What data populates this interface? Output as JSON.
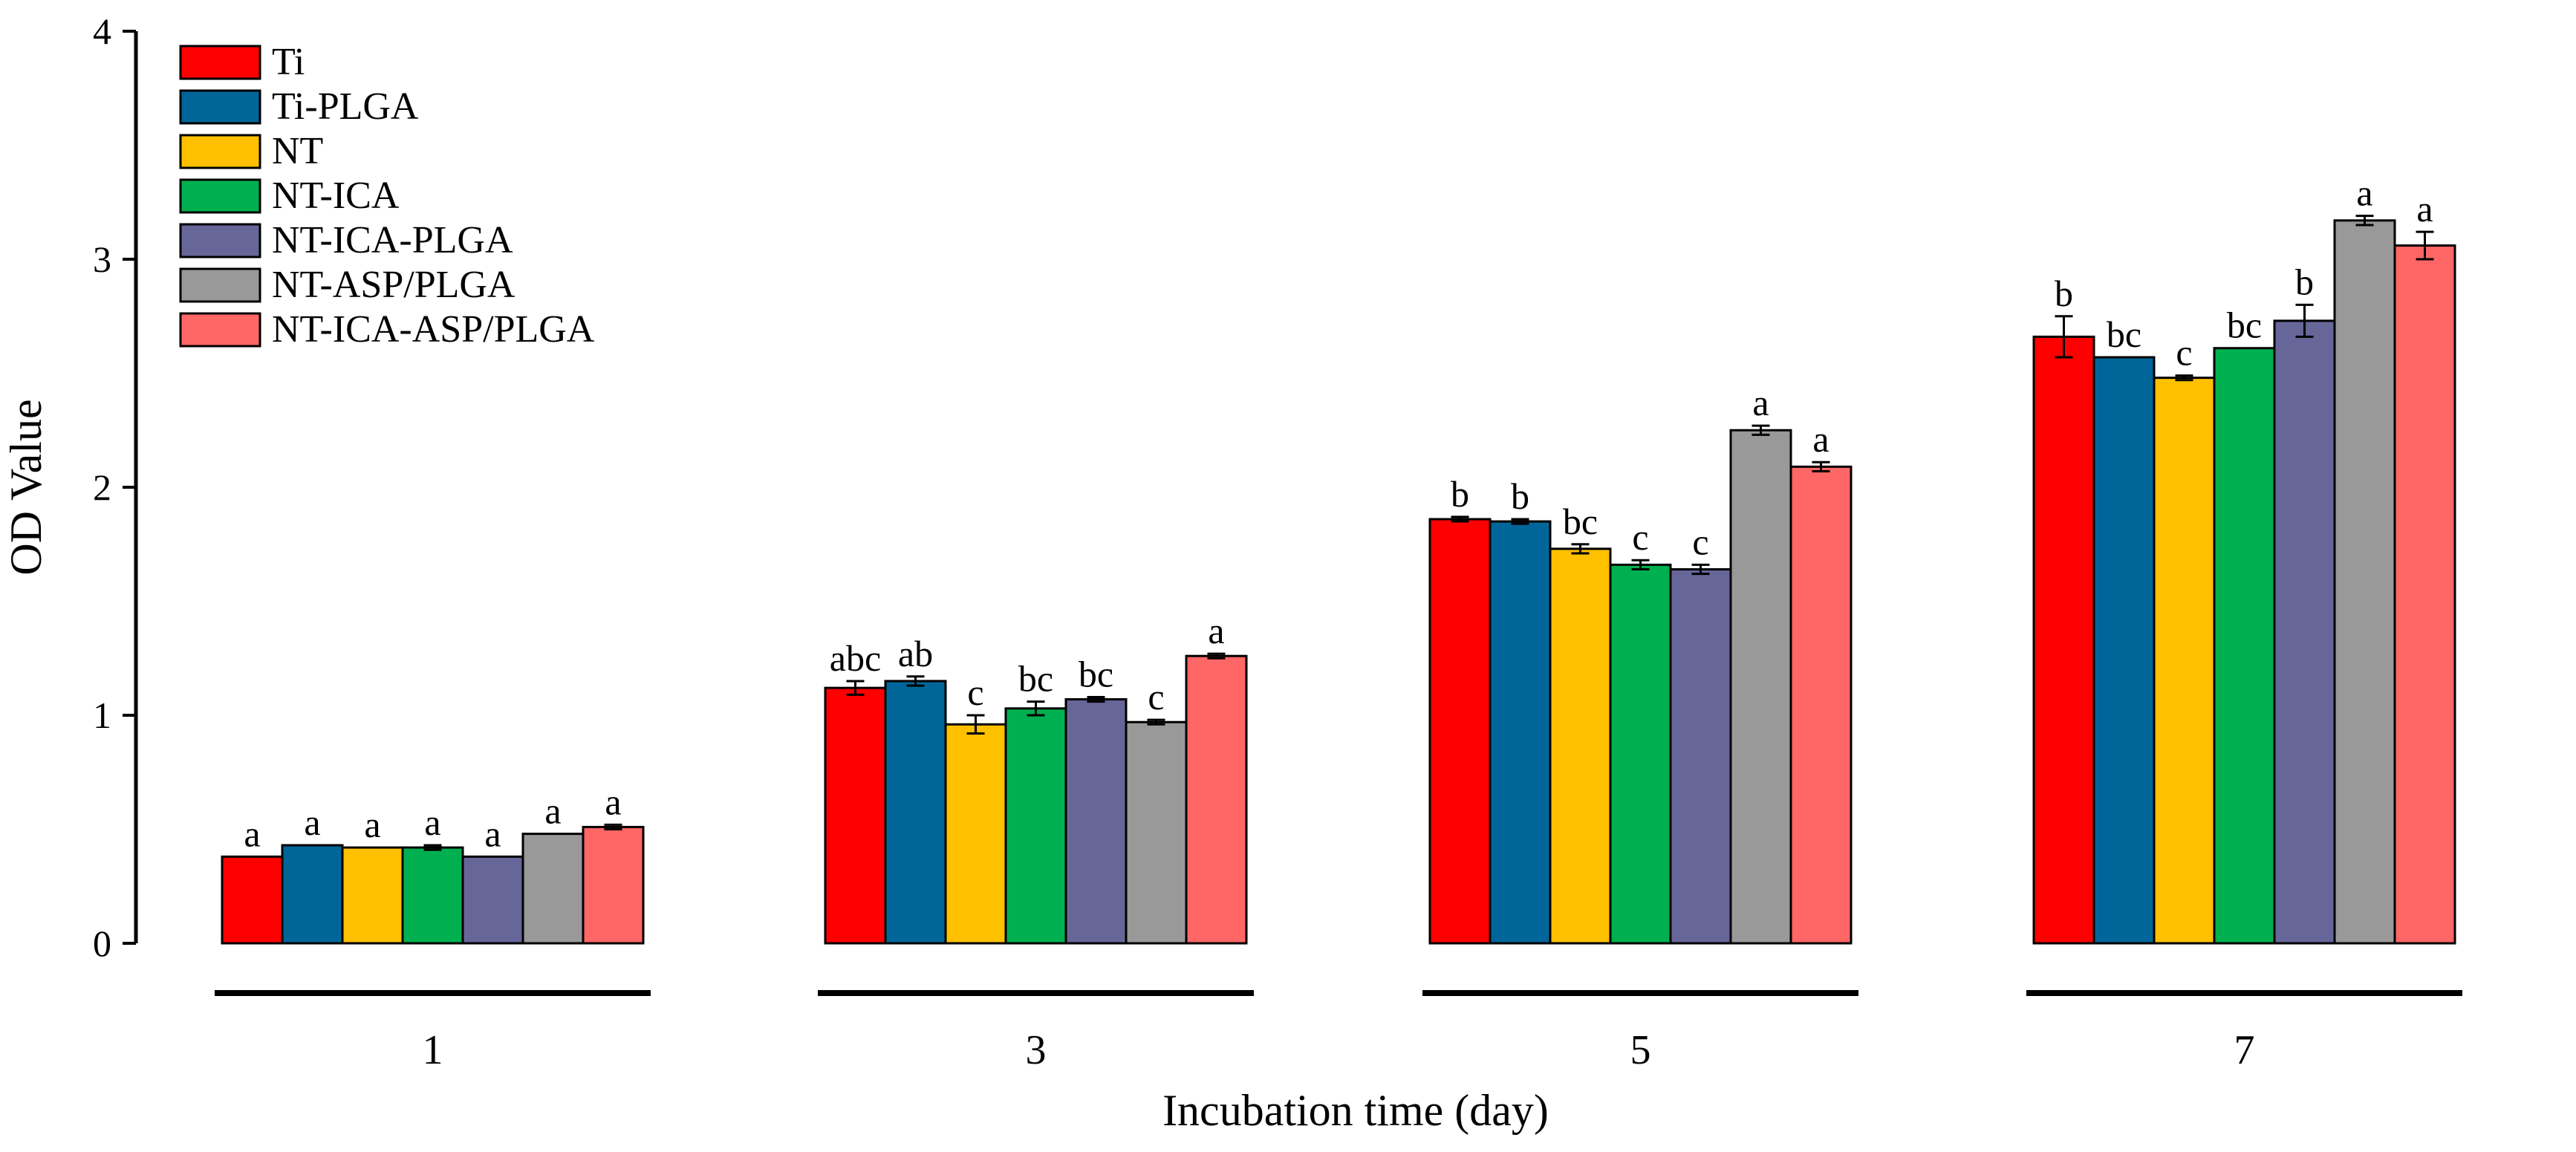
{
  "chart_data": {
    "type": "bar",
    "title": "",
    "xlabel": "Incubation time (day)",
    "ylabel": "OD Value",
    "ylim": [
      0,
      4
    ],
    "yticks": [
      "0",
      "1",
      "2",
      "3",
      "4"
    ],
    "categories": [
      "1",
      "3",
      "5",
      "7"
    ],
    "legend_position": "top-left",
    "series": [
      {
        "name": "Ti",
        "color": "#ff0000",
        "values": [
          0.38,
          1.12,
          1.86,
          2.66
        ],
        "errors": [
          0.0,
          0.03,
          0.01,
          0.09
        ],
        "labels": [
          "a",
          "abc",
          "b",
          "b"
        ]
      },
      {
        "name": "Ti-PLGA",
        "color": "#006699",
        "values": [
          0.43,
          1.15,
          1.85,
          2.57
        ],
        "errors": [
          0.0,
          0.02,
          0.01,
          0.0
        ],
        "labels": [
          "a",
          "ab",
          "b",
          "bc"
        ]
      },
      {
        "name": "NT",
        "color": "#ffc000",
        "values": [
          0.42,
          0.96,
          1.73,
          2.48
        ],
        "errors": [
          0.0,
          0.04,
          0.02,
          0.01
        ],
        "labels": [
          "a",
          "c",
          "bc",
          "c"
        ]
      },
      {
        "name": "NT-ICA",
        "color": "#00b050",
        "values": [
          0.42,
          1.03,
          1.66,
          2.61
        ],
        "errors": [
          0.01,
          0.03,
          0.02,
          0.0
        ],
        "labels": [
          "a",
          "bc",
          "c",
          "bc"
        ]
      },
      {
        "name": "NT-ICA-PLGA",
        "color": "#666699",
        "values": [
          0.38,
          1.07,
          1.64,
          2.73
        ],
        "errors": [
          0.0,
          0.01,
          0.02,
          0.07
        ],
        "labels": [
          "a",
          "bc",
          "c",
          "b"
        ]
      },
      {
        "name": "NT-ASP/PLGA",
        "color": "#999999",
        "values": [
          0.48,
          0.97,
          2.25,
          3.17
        ],
        "errors": [
          0.0,
          0.01,
          0.02,
          0.02
        ],
        "labels": [
          "a",
          "c",
          "a",
          "a"
        ]
      },
      {
        "name": "NT-ICA-ASP/PLGA",
        "color": "#ff6666",
        "values": [
          0.51,
          1.26,
          2.09,
          3.06
        ],
        "errors": [
          0.01,
          0.01,
          0.02,
          0.06
        ],
        "labels": [
          "a",
          "a",
          "a",
          "a"
        ]
      }
    ]
  }
}
